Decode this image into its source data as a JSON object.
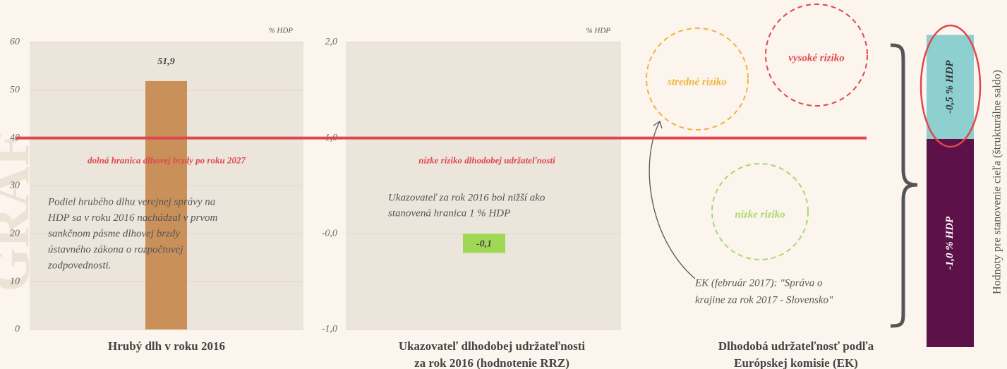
{
  "watermark": "GRAF",
  "chart_data": [
    {
      "type": "bar",
      "title": [
        "Hrubý dlh v roku 2016"
      ],
      "unit": "% HDP",
      "values": [
        51.9
      ],
      "value_labels": [
        "51,9"
      ],
      "color": "#c9905a",
      "ylim": [
        0,
        60
      ],
      "yticks": [
        0,
        10,
        20,
        30,
        40,
        50,
        60
      ],
      "grid": true,
      "reference_line": {
        "value": 40,
        "label": "dolná hranica dlhovej brzdy po roku 2027",
        "color": "#e0474c"
      },
      "annotation": [
        "Podiel hrubého dlhu verejnej správy na",
        "HDP sa v roku 2016 nachádzal v prvom",
        "sankčnom pásme dlhovej brzdy",
        "ústavného zákona o rozpočtovej",
        "zodpovednosti."
      ]
    },
    {
      "type": "bar",
      "title": [
        "Ukazovateľ dlhodobej udržateľnosti",
        "za rok 2016 (hodnotenie RRZ)"
      ],
      "unit": "% HDP",
      "values": [
        -0.1
      ],
      "value_labels": [
        "-0,1"
      ],
      "color": "#9fd855",
      "ylim": [
        -1,
        2
      ],
      "yticks": [
        {
          "value": -1,
          "label": "-1,0"
        },
        {
          "value": 0,
          "label": "-0,0"
        },
        {
          "value": 1,
          "label": "1,0"
        },
        {
          "value": 2,
          "label": "2,0"
        }
      ],
      "grid": true,
      "reference_line": {
        "value": 1,
        "label": "nízke riziko dlhodobej udržateľnosti",
        "color": "#e0474c"
      },
      "annotation": [
        "Ukazovateľ za rok 2016 bol nižší ako",
        "stanovená hranica 1 % HDP"
      ]
    },
    {
      "type": "diagram",
      "title": [
        "Dlhodobá udržateľnosť podľa",
        "Európskej komisie (EK)"
      ],
      "nodes": [
        {
          "label": "stredné riziko",
          "color": "#f0b43c"
        },
        {
          "label": "vysoké riziko",
          "color": "#e0474c"
        },
        {
          "label": "nízke riziko",
          "color": "#a9d86a"
        }
      ],
      "annotation": [
        "EK (február 2017): \"Správa o",
        "krajine za rok 2017 - Slovensko\""
      ]
    },
    {
      "type": "stacked_bar",
      "axis_label": "Hodnoty pre stanovenie cieľa (štrukturálne saldo)",
      "segments": [
        {
          "values": [
            -1.0
          ],
          "value_labels": [
            "-1,0 % HDP"
          ],
          "color": "#5c1249"
        },
        {
          "values": [
            -0.5
          ],
          "value_labels": [
            "-0,5 % HDP"
          ],
          "color": "#8ecfd0"
        }
      ]
    }
  ]
}
